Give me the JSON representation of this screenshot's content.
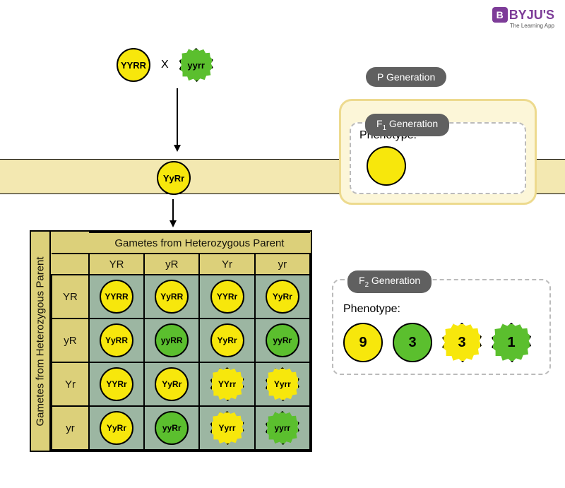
{
  "logo": {
    "brand": "BYJU'S",
    "tagline": "The Learning App"
  },
  "colors": {
    "yellow_seed": "#f7e70c",
    "green_seed": "#5bbf2e",
    "band": "#f3e8b1",
    "panel": "#fcf6d8",
    "panel_border": "#edda8e",
    "punnett_header": "#dcd07a",
    "punnett_cell": "#9cb6a2",
    "badge": "#606060"
  },
  "p_generation": {
    "label": "P Generation",
    "parent1": {
      "genotype": "YYRR",
      "color": "yellow",
      "shape": "round"
    },
    "cross": "X",
    "parent2": {
      "genotype": "yyrr",
      "color": "green",
      "shape": "wrinkled"
    }
  },
  "f1": {
    "label": "F₁ Generation",
    "phenotype_label": "Phenotype:",
    "genotype": "YyRr",
    "phenotype": {
      "color": "yellow",
      "shape": "round"
    }
  },
  "f2": {
    "label": "F₂ Generation",
    "phenotype_label": "Phenotype:",
    "ratio": [
      {
        "count": "9",
        "color": "yellow",
        "shape": "round"
      },
      {
        "count": "3",
        "color": "green",
        "shape": "round"
      },
      {
        "count": "3",
        "color": "yellow",
        "shape": "wrinkled"
      },
      {
        "count": "1",
        "color": "green",
        "shape": "wrinkled"
      }
    ]
  },
  "punnett": {
    "title_top": "Gametes from Heterozygous Parent",
    "title_side": "Gametes from Heterozygous Parent",
    "cols": [
      "YR",
      "yR",
      "Yr",
      "yr"
    ],
    "rows": [
      "YR",
      "yR",
      "Yr",
      "yr"
    ],
    "cells": [
      [
        {
          "g": "YYRR",
          "c": "yellow",
          "s": "round"
        },
        {
          "g": "YyRR",
          "c": "yellow",
          "s": "round"
        },
        {
          "g": "YYRr",
          "c": "yellow",
          "s": "round"
        },
        {
          "g": "YyRr",
          "c": "yellow",
          "s": "round"
        }
      ],
      [
        {
          "g": "YyRR",
          "c": "yellow",
          "s": "round"
        },
        {
          "g": "yyRR",
          "c": "green",
          "s": "round"
        },
        {
          "g": "YyRr",
          "c": "yellow",
          "s": "round"
        },
        {
          "g": "yyRr",
          "c": "green",
          "s": "round"
        }
      ],
      [
        {
          "g": "YYRr",
          "c": "yellow",
          "s": "round"
        },
        {
          "g": "YyRr",
          "c": "yellow",
          "s": "round"
        },
        {
          "g": "YYrr",
          "c": "yellow",
          "s": "wrinkled"
        },
        {
          "g": "Yyrr",
          "c": "yellow",
          "s": "wrinkled"
        }
      ],
      [
        {
          "g": "YyRr",
          "c": "yellow",
          "s": "round"
        },
        {
          "g": "yyRr",
          "c": "green",
          "s": "round"
        },
        {
          "g": "Yyrr",
          "c": "yellow",
          "s": "wrinkled"
        },
        {
          "g": "yyrr",
          "c": "green",
          "s": "wrinkled"
        }
      ]
    ]
  }
}
